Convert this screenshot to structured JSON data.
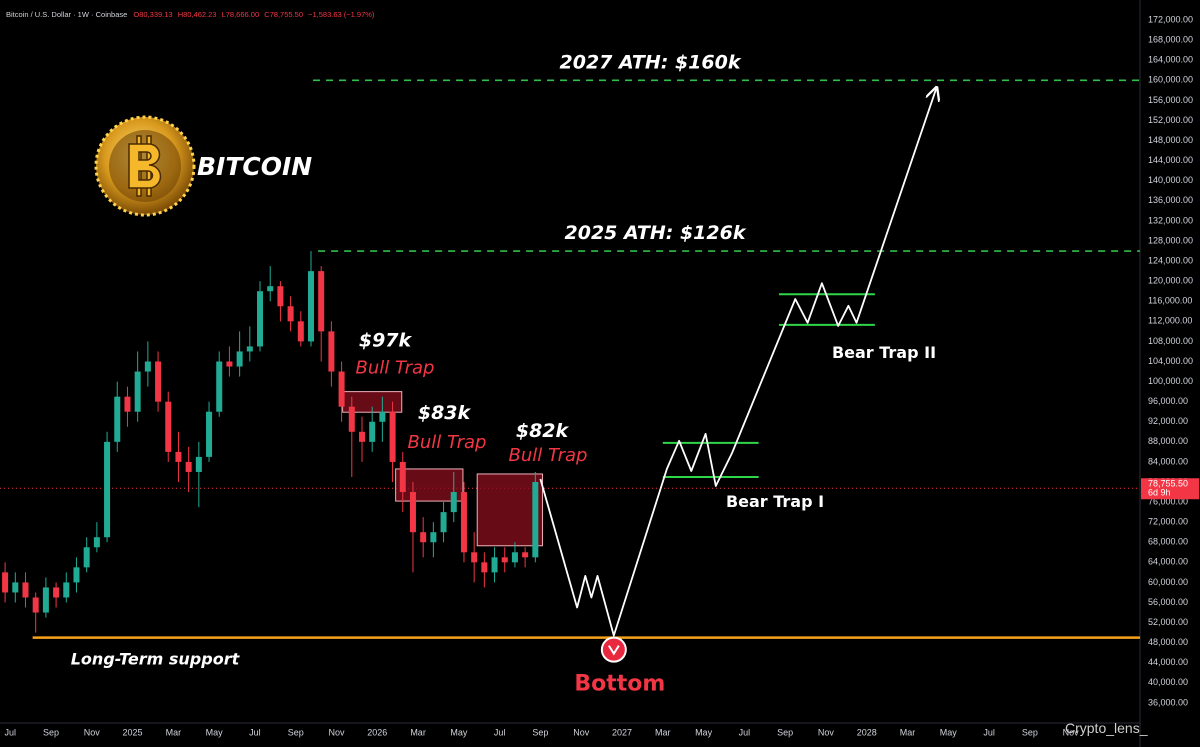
{
  "chart_data": {
    "type": "candlestick",
    "header": "Bitcoin / U.S. Dollar · 1W · Coinbase",
    "ohlc_readout": [
      "O80,339.13",
      "H80,462.23",
      "L78,666.00",
      "C78,755.50",
      "−1,583.63 (−1.97%)"
    ],
    "title": "BITCOIN",
    "xlim": [
      -0.5,
      55.4
    ],
    "ylim": [
      32000,
      176000
    ],
    "grid": false,
    "colors": {
      "up": "#22ab94",
      "down": "#f23645"
    },
    "xticks": [
      {
        "value": 0,
        "label": "Jul"
      },
      {
        "value": 2,
        "label": "Sep"
      },
      {
        "value": 4,
        "label": "Nov"
      },
      {
        "value": 6,
        "label": "2025"
      },
      {
        "value": 8,
        "label": "Mar"
      },
      {
        "value": 10,
        "label": "May"
      },
      {
        "value": 12,
        "label": "Jul"
      },
      {
        "value": 14,
        "label": "Sep"
      },
      {
        "value": 16,
        "label": "Nov"
      },
      {
        "value": 18,
        "label": "2026"
      },
      {
        "value": 20,
        "label": "Mar"
      },
      {
        "value": 22,
        "label": "May"
      },
      {
        "value": 24,
        "label": "Jul"
      },
      {
        "value": 26,
        "label": "Sep"
      },
      {
        "value": 28,
        "label": "Nov"
      },
      {
        "value": 30,
        "label": "2027"
      },
      {
        "value": 32,
        "label": "Mar"
      },
      {
        "value": 34,
        "label": "May"
      },
      {
        "value": 36,
        "label": "Jul"
      },
      {
        "value": 38,
        "label": "Sep"
      },
      {
        "value": 40,
        "label": "Nov"
      },
      {
        "value": 42,
        "label": "2028"
      },
      {
        "value": 44,
        "label": "Mar"
      },
      {
        "value": 46,
        "label": "May"
      },
      {
        "value": 48,
        "label": "Jul"
      },
      {
        "value": 50,
        "label": "Sep"
      },
      {
        "value": 52,
        "label": "Nov"
      }
    ],
    "yticks": [
      {
        "value": 36000,
        "label": "36,000.00"
      },
      {
        "value": 40000,
        "label": "40,000.00"
      },
      {
        "value": 44000,
        "label": "44,000.00"
      },
      {
        "value": 48000,
        "label": "48,000.00"
      },
      {
        "value": 52000,
        "label": "52,000.00"
      },
      {
        "value": 56000,
        "label": "56,000.00"
      },
      {
        "value": 60000,
        "label": "60,000.00"
      },
      {
        "value": 64000,
        "label": "64,000.00"
      },
      {
        "value": 68000,
        "label": "68,000.00"
      },
      {
        "value": 72000,
        "label": "72,000.00"
      },
      {
        "value": 76000,
        "label": "76,000.00"
      },
      {
        "value": 80000,
        "label": "80,000.00"
      },
      {
        "value": 84000,
        "label": "84,000.00"
      },
      {
        "value": 88000,
        "label": "88,000.00"
      },
      {
        "value": 92000,
        "label": "92,000.00"
      },
      {
        "value": 96000,
        "label": "96,000.00"
      },
      {
        "value": 100000,
        "label": "100,000.00"
      },
      {
        "value": 104000,
        "label": "104,000.00"
      },
      {
        "value": 108000,
        "label": "108,000.00"
      },
      {
        "value": 112000,
        "label": "112,000.00"
      },
      {
        "value": 116000,
        "label": "116,000.00"
      },
      {
        "value": 120000,
        "label": "120,000.00"
      },
      {
        "value": 124000,
        "label": "124,000.00"
      },
      {
        "value": 128000,
        "label": "128,000.00"
      },
      {
        "value": 132000,
        "label": "132,000.00"
      },
      {
        "value": 136000,
        "label": "136,000.00"
      },
      {
        "value": 140000,
        "label": "140,000.00"
      },
      {
        "value": 144000,
        "label": "144,000.00"
      },
      {
        "value": 148000,
        "label": "148,000.00"
      },
      {
        "value": 152000,
        "label": "152,000.00"
      },
      {
        "value": 156000,
        "label": "156,000.00"
      },
      {
        "value": 160000,
        "label": "160,000.00"
      },
      {
        "value": 164000,
        "label": "164,000.00"
      },
      {
        "value": 168000,
        "label": "168,000.00"
      },
      {
        "value": 172000,
        "label": "172,000.00"
      }
    ],
    "candles": {
      "x": [
        -0.25,
        0.25,
        0.75,
        1.25,
        1.75,
        2.25,
        2.75,
        3.25,
        3.75,
        4.25,
        4.75,
        5.25,
        5.75,
        6.25,
        6.75,
        7.25,
        7.75,
        8.25,
        8.75,
        9.25,
        9.75,
        10.25,
        10.75,
        11.25,
        11.75,
        12.25,
        12.75,
        13.25,
        13.75,
        14.25,
        14.75,
        15.25,
        15.75,
        16.25,
        16.75,
        17.25,
        17.75,
        18.25,
        18.75,
        19.25,
        19.75,
        20.25,
        20.75,
        21.25,
        21.75,
        22.25,
        22.75,
        23.25,
        23.75,
        24.25,
        24.75,
        25.25,
        25.75
      ],
      "open": [
        62000,
        58000,
        60000,
        57000,
        54000,
        59000,
        57000,
        60000,
        63000,
        67000,
        69000,
        88000,
        97000,
        94000,
        102000,
        104000,
        96000,
        86000,
        84000,
        82000,
        85000,
        94000,
        104000,
        103000,
        106000,
        107000,
        118000,
        119000,
        115000,
        112000,
        108000,
        122000,
        110000,
        102000,
        95000,
        90000,
        88000,
        92000,
        94000,
        84000,
        78000,
        70000,
        68000,
        70000,
        74000,
        78000,
        66000,
        64000,
        62000,
        65000,
        64000,
        66000,
        65000
      ],
      "high": [
        64000,
        62000,
        62000,
        58000,
        61000,
        60000,
        62000,
        65000,
        69000,
        72000,
        90000,
        100000,
        99000,
        106000,
        108000,
        106000,
        98000,
        90000,
        87000,
        88000,
        96000,
        106000,
        107000,
        110000,
        111000,
        120000,
        123000,
        120000,
        117000,
        114000,
        126000,
        123000,
        112000,
        104000,
        97000,
        93000,
        95000,
        97000,
        96000,
        86000,
        80000,
        73000,
        72000,
        76000,
        82000,
        80000,
        70000,
        66000,
        67000,
        67000,
        68000,
        67000,
        82000
      ],
      "low": [
        56000,
        56000,
        55000,
        50000,
        53000,
        55000,
        56000,
        58000,
        62000,
        66000,
        68000,
        86000,
        91000,
        92000,
        99000,
        94000,
        84000,
        80000,
        78000,
        75000,
        84000,
        93000,
        101000,
        101000,
        104000,
        106000,
        116000,
        112000,
        110000,
        107000,
        107000,
        104000,
        99000,
        92000,
        81000,
        84000,
        86000,
        88000,
        80000,
        74000,
        62000,
        65000,
        65000,
        68000,
        72000,
        64000,
        60000,
        59000,
        60000,
        62000,
        63000,
        63000,
        64000
      ],
      "close": [
        58000,
        60000,
        57000,
        54000,
        59000,
        57000,
        60000,
        63000,
        67000,
        69000,
        88000,
        97000,
        94000,
        102000,
        104000,
        96000,
        86000,
        84000,
        82000,
        85000,
        94000,
        104000,
        103000,
        106000,
        107000,
        118000,
        119000,
        115000,
        112000,
        108000,
        122000,
        110000,
        102000,
        95000,
        90000,
        88000,
        92000,
        94000,
        84000,
        78000,
        70000,
        68000,
        70000,
        74000,
        78000,
        66000,
        64000,
        62000,
        65000,
        64000,
        66000,
        65000,
        80000
      ]
    },
    "last_price": {
      "value": 78755.5,
      "label": "78,755.50",
      "countdown": "6d 9h"
    },
    "levels": [
      {
        "label": "2027 ATH: $160k",
        "value": 160000,
        "x0": 14.85,
        "color": "#2fbf4a"
      },
      {
        "label": "2025 ATH: $126k",
        "value": 126000,
        "x0": 15.1,
        "color": "#2fbf4a"
      }
    ],
    "support": {
      "label": "Long-Term support",
      "value": 49000,
      "x0": 1.1,
      "color": "#f7a21b"
    },
    "bull_traps": [
      {
        "label": "$97k",
        "sublabel": "Bull Trap",
        "x": [
          16.3,
          19.2
        ],
        "price": [
          93900,
          98000
        ]
      },
      {
        "label": "$83k",
        "sublabel": "Bull Trap",
        "x": [
          18.9,
          22.2
        ],
        "price": [
          76200,
          82600
        ]
      },
      {
        "label": "$82k",
        "sublabel": "Bull Trap",
        "x": [
          22.9,
          26.1
        ],
        "price": [
          67300,
          81600
        ]
      }
    ],
    "bear_traps": [
      {
        "label": "Bear Trap I",
        "x": [
          32.0,
          36.7
        ],
        "upper": 87800,
        "lower": 81000,
        "color": "#2fd64a"
      },
      {
        "label": "Bear Trap II",
        "x": [
          37.7,
          42.4
        ],
        "upper": 117400,
        "lower": 111300,
        "color": "#2fd64a"
      }
    ],
    "projection": {
      "x": [
        26.0,
        27.8,
        28.2,
        28.5,
        28.8,
        29.6,
        32.2,
        32.8,
        33.4,
        34.1,
        34.6,
        35.4,
        38.5,
        39.1,
        39.8,
        40.6,
        41.1,
        41.5,
        45.4
      ],
      "y": [
        80600,
        55000,
        61300,
        57000,
        61300,
        49400,
        82600,
        88200,
        82200,
        89600,
        79200,
        85800,
        116450,
        111700,
        119600,
        111100,
        115100,
        111700,
        158300
      ],
      "color": "#ffffff"
    },
    "bottom_label": "Bottom",
    "watermark": "Crypto_lens_"
  }
}
